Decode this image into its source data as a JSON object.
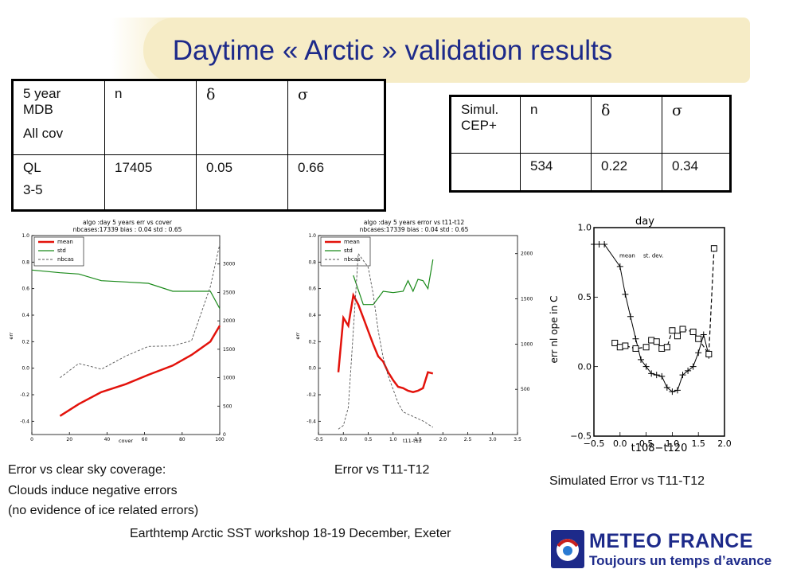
{
  "title": "Daytime « Arctic » validation results",
  "table_left": {
    "header": [
      [
        "5 year",
        "MDB",
        "All cov"
      ],
      "n",
      "δ",
      "σ"
    ],
    "row": [
      [
        "QL",
        "3-5"
      ],
      "17405",
      "0.05",
      "0.66"
    ]
  },
  "table_right": {
    "header": [
      [
        "Simul.",
        "CEP+"
      ],
      "n",
      "δ",
      "σ"
    ],
    "row": [
      "",
      "534",
      "0.22",
      "0.34"
    ]
  },
  "plot1": {
    "title_line1": "algo :day 5 years err vs cover",
    "title_line2": "nbcases:17339 bias : 0.04 std : 0.65",
    "legend": [
      "mean",
      "std",
      "nbcas"
    ],
    "xlabel": "cover",
    "ylabel": "err",
    "xticks": [
      "0",
      "20",
      "40",
      "60",
      "80",
      "100"
    ],
    "yticks": [
      "-0.4",
      "-0.2",
      "0.0",
      "0.2",
      "0.4",
      "0.6",
      "0.8",
      "1.0"
    ],
    "y2ticks": [
      "0",
      "500",
      "1000",
      "1500",
      "2000",
      "2500",
      "3000"
    ]
  },
  "plot2": {
    "title_line1": "algo :day 5 years error vs t11-t12",
    "title_line2": "nbcases:17339 bias : 0.04 std : 0.65",
    "legend": [
      "mean",
      "std",
      "nbcas"
    ],
    "xlabel": "t11-t12",
    "ylabel": "err",
    "xticks": [
      "-0.5",
      "0.0",
      "0.5",
      "1.0",
      "1.5",
      "2.0",
      "2.5",
      "3.0",
      "3.5"
    ],
    "yticks": [
      "-0.4",
      "-0.2",
      "0.0",
      "0.2",
      "0.4",
      "0.6",
      "0.8",
      "1.0"
    ],
    "y2ticks": [
      "500",
      "1000",
      "1500",
      "2000"
    ]
  },
  "plot3": {
    "title": "day",
    "legend": [
      "mean",
      "st. dev."
    ],
    "xlabel": "t108−t120",
    "ylabel": "err nl ope in C",
    "xticks": [
      "−0.5",
      "0.0",
      "0.5",
      "1.0",
      "1.5",
      "2.0"
    ],
    "yticks": [
      "1.0",
      "0.5",
      "0.0",
      "−0.5"
    ]
  },
  "chart_data": [
    {
      "type": "line",
      "title": "algo :day 5 years err vs cover",
      "xlabel": "cover",
      "ylabel": "err",
      "xlim": [
        0,
        100
      ],
      "ylim": [
        -0.5,
        1.0
      ],
      "y2lim": [
        0,
        3500
      ],
      "series": [
        {
          "name": "mean",
          "color": "#e3120b",
          "x": [
            15,
            25,
            37,
            50,
            62,
            75,
            85,
            95,
            100
          ],
          "y": [
            -0.36,
            -0.27,
            -0.18,
            -0.12,
            -0.05,
            0.02,
            0.1,
            0.2,
            0.32
          ]
        },
        {
          "name": "std",
          "color": "#1a8a1a",
          "x": [
            0,
            15,
            25,
            37,
            50,
            62,
            75,
            85,
            95,
            100
          ],
          "y": [
            0.74,
            0.72,
            0.71,
            0.66,
            0.65,
            0.64,
            0.58,
            0.58,
            0.58,
            0.45
          ]
        },
        {
          "name": "nbcas",
          "color": "#555555",
          "axis": "right",
          "x": [
            15,
            25,
            37,
            50,
            62,
            75,
            85,
            95,
            100
          ],
          "y": [
            1000,
            1250,
            1150,
            1380,
            1550,
            1560,
            1650,
            2600,
            3350
          ]
        }
      ]
    },
    {
      "type": "line",
      "title": "algo :day 5 years error vs t11-t12",
      "xlabel": "t11-t12",
      "ylabel": "err",
      "xlim": [
        -0.5,
        3.5
      ],
      "ylim": [
        -0.5,
        1.0
      ],
      "y2lim": [
        0,
        2200
      ],
      "series": [
        {
          "name": "mean",
          "color": "#e3120b",
          "x": [
            -0.1,
            0.0,
            0.1,
            0.2,
            0.3,
            0.4,
            0.5,
            0.6,
            0.7,
            0.8,
            0.9,
            1.0,
            1.1,
            1.2,
            1.3,
            1.4,
            1.5,
            1.6,
            1.7,
            1.8
          ],
          "y": [
            -0.03,
            0.38,
            0.32,
            0.55,
            0.48,
            0.38,
            0.28,
            0.18,
            0.09,
            0.05,
            -0.03,
            -0.09,
            -0.14,
            -0.15,
            -0.17,
            -0.18,
            -0.17,
            -0.15,
            -0.03,
            -0.04
          ]
        },
        {
          "name": "std",
          "color": "#1a8a1a",
          "x": [
            0.2,
            0.4,
            0.6,
            0.8,
            1.0,
            1.2,
            1.3,
            1.4,
            1.5,
            1.6,
            1.7,
            1.8
          ],
          "y": [
            0.7,
            0.48,
            0.48,
            0.58,
            0.57,
            0.58,
            0.66,
            0.58,
            0.67,
            0.66,
            0.6,
            0.82
          ]
        },
        {
          "name": "nbcas",
          "color": "#555555",
          "axis": "right",
          "x": [
            -0.1,
            0.0,
            0.1,
            0.2,
            0.3,
            0.5,
            0.6,
            0.7,
            0.8,
            0.9,
            1.0,
            1.1,
            1.2,
            1.4,
            1.6,
            1.8
          ],
          "y": [
            60,
            100,
            300,
            1150,
            2000,
            1850,
            1550,
            1150,
            850,
            650,
            500,
            350,
            250,
            200,
            150,
            80
          ]
        }
      ]
    },
    {
      "type": "line",
      "title": "day",
      "xlabel": "t108−t120",
      "ylabel": "err nl ope in C",
      "xlim": [
        -0.5,
        2.0
      ],
      "ylim": [
        -0.5,
        1.0
      ],
      "series": [
        {
          "name": "mean",
          "x": [
            -0.5,
            -0.4,
            -0.3,
            0.0,
            0.1,
            0.2,
            0.3,
            0.4,
            0.5,
            0.6,
            0.7,
            0.8,
            0.9,
            1.0,
            1.1,
            1.2,
            1.3,
            1.4,
            1.5,
            1.6,
            1.7
          ],
          "y": [
            0.88,
            0.88,
            0.88,
            0.72,
            0.52,
            0.36,
            0.2,
            0.05,
            0.0,
            -0.05,
            -0.06,
            -0.07,
            -0.15,
            -0.18,
            -0.17,
            -0.06,
            -0.03,
            0.0,
            0.1,
            0.23,
            0.08
          ]
        },
        {
          "name": "st. dev.",
          "x": [
            -0.1,
            0.0,
            0.1,
            0.3,
            0.5,
            0.6,
            0.7,
            0.8,
            0.9,
            1.0,
            1.1,
            1.2,
            1.4,
            1.5,
            1.7,
            1.8
          ],
          "y": [
            0.17,
            0.14,
            0.15,
            0.13,
            0.14,
            0.19,
            0.18,
            0.13,
            0.14,
            0.26,
            0.22,
            0.27,
            0.25,
            0.2,
            0.09,
            0.85
          ]
        }
      ]
    }
  ],
  "captions": {
    "plot1_line1": "Error vs clear sky coverage:",
    "plot1_line2": "Clouds induce negative errors",
    "plot1_line3": "(no evidence of ice related errors)",
    "plot2": "Error vs T11-T12",
    "plot3": "Simulated Error vs T11-T12"
  },
  "footer": "Earthtemp Arctic SST workshop 18-19 December, Exeter",
  "logo": {
    "name": "METEO FRANCE",
    "tagline": "Toujours un temps d’avance"
  },
  "colors": {
    "title": "#1d2a8a",
    "banner": "#f6ecc6",
    "mean": "#e3120b",
    "std": "#1a8a1a",
    "nbcas": "#555555"
  }
}
